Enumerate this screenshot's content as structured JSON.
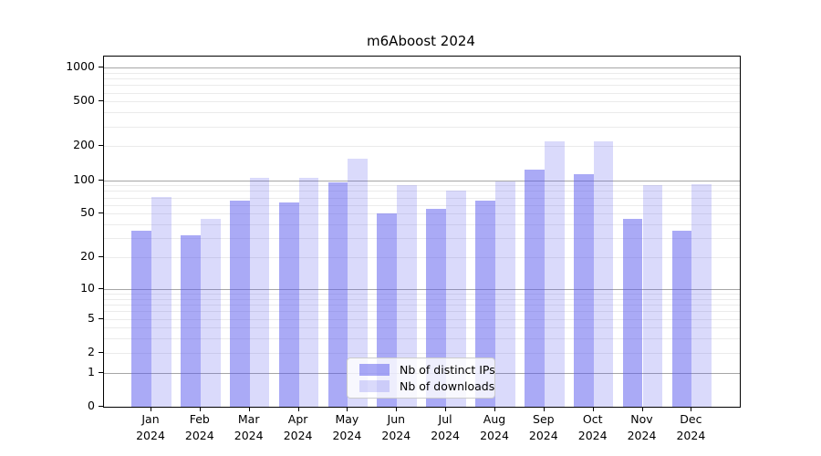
{
  "chart_data": {
    "type": "bar",
    "title": "m6Aboost 2024",
    "categories": [
      "Jan",
      "Feb",
      "Mar",
      "Apr",
      "May",
      "Jun",
      "Jul",
      "Aug",
      "Sep",
      "Oct",
      "Nov",
      "Dec"
    ],
    "year_label": "2024",
    "series": [
      {
        "name": "Nb of distinct IPs",
        "base_color": "#5555ee",
        "alpha": 0.5,
        "rendered_color": "#aaaaf6",
        "values": [
          35,
          32,
          66,
          63,
          95,
          50,
          55,
          65,
          124,
          114,
          45,
          35
        ]
      },
      {
        "name": "Nb of downloads",
        "base_color": "#5555ee",
        "alpha": 0.22,
        "rendered_color": "#d9d9fa",
        "values": [
          71,
          45,
          104,
          104,
          154,
          91,
          81,
          98,
          222,
          222,
          91,
          92
        ]
      }
    ],
    "y_axis": {
      "scale": "log10(1+v)",
      "tick_values": [
        1000,
        500,
        200,
        100,
        50,
        20,
        10,
        5,
        2,
        1,
        0
      ],
      "tick_labels": [
        "1000",
        "500",
        "200",
        "100",
        "50",
        "20",
        "10",
        "5",
        "2",
        "1",
        "0"
      ],
      "major_grid_values": [
        1,
        10,
        100,
        1000
      ],
      "ylim": [
        0,
        1250
      ]
    },
    "grid": {
      "major_color": "#a6a6a6",
      "minor_color": "#ebebeb",
      "minor_subs": [
        2,
        3,
        4,
        5,
        6,
        7,
        8,
        9
      ]
    },
    "legend": {
      "position": "bottom-center"
    }
  }
}
